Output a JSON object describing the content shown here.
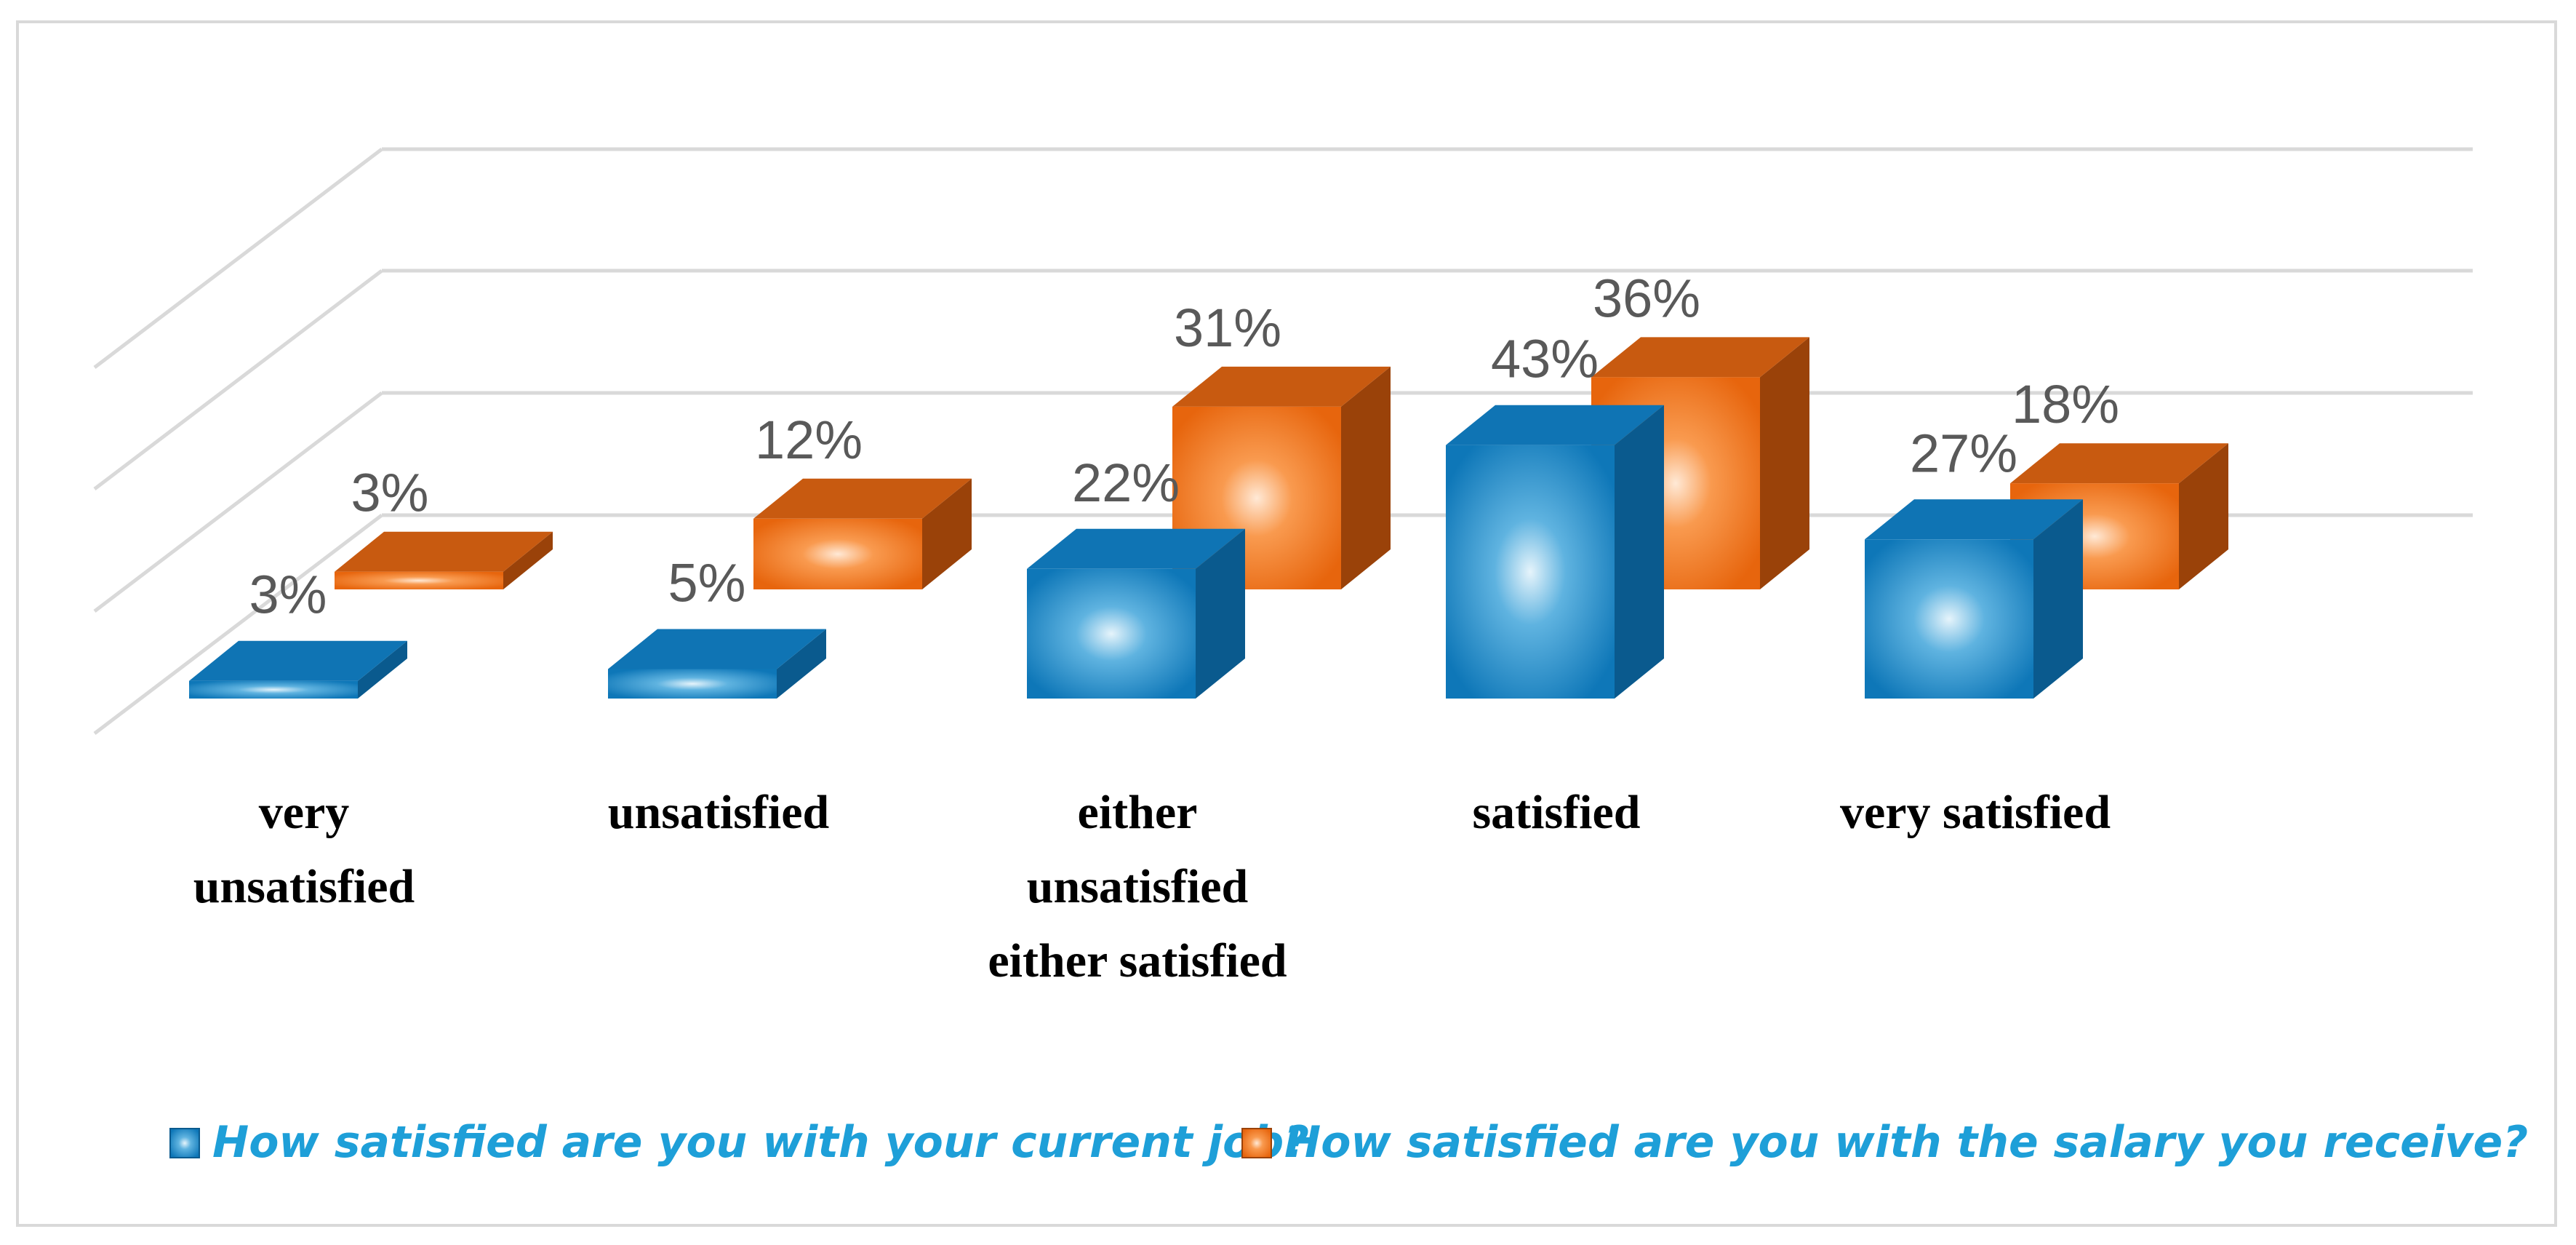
{
  "chart_data": {
    "type": "bar",
    "style": "3d-clustered-column",
    "title": "",
    "xlabel": "",
    "ylabel": "",
    "ylim": [
      0,
      50
    ],
    "grid": true,
    "categories": [
      "very unsatisfied",
      "unsatisfied",
      "either unsatisfied either satisfied",
      "satisfied",
      "very satisfied"
    ],
    "category_lines": [
      [
        "very",
        "unsatisfied"
      ],
      [
        "unsatisfied"
      ],
      [
        "either",
        "unsatisfied",
        "either satisfied"
      ],
      [
        "satisfied"
      ],
      [
        "very satisfied"
      ]
    ],
    "series": [
      {
        "name": "How satisfied are you with your current job?",
        "values": [
          3,
          5,
          22,
          43,
          27
        ],
        "labels": [
          "3%",
          "5%",
          "22%",
          "43%",
          "27%"
        ],
        "color": "#1a88c9",
        "top_color": "#0f74b4",
        "side_color": "#0a5a8e"
      },
      {
        "name": "How satisfied are you with the salary you receive?",
        "values": [
          3,
          12,
          31,
          36,
          18
        ],
        "labels": [
          "3%",
          "12%",
          "31%",
          "36%",
          "18%"
        ],
        "color": "#f57a20",
        "top_color": "#c85a10",
        "side_color": "#9a4209"
      }
    ],
    "legend_position": "bottom"
  },
  "colors": {
    "legend_text": "#1e9fd8",
    "gridline": "#d9d9d9",
    "value_label": "#595959",
    "category_label": "#000000"
  }
}
